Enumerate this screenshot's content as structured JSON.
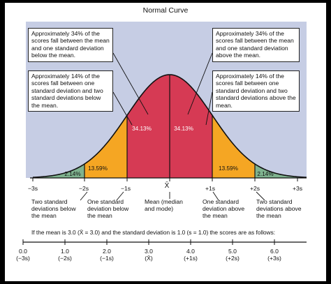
{
  "title": "Normal Curve",
  "callouts": {
    "left_34": "Approximately 34% of the scores fall between the mean and one standard deviation below the mean.",
    "right_34": "Approximately 34% of the scores fall between the mean and one standard deviation above the mean.",
    "left_14": "Approximately 14% of the scores fall between one standard deviation and two standard deviations below the mean.",
    "right_14": "Approximately 14% of the scores fall between one standard deviation and two standard deviations above the mean."
  },
  "regions": {
    "center_left": "34.13%",
    "center_right": "34.13%",
    "mid_left": "13.59%",
    "mid_right": "13.59%",
    "tail_left": "2.14%",
    "tail_right": "2.14%"
  },
  "axis_ticks": [
    "−3s",
    "−2s",
    "−1s",
    "X̄",
    "+1s",
    "+2s",
    "+3s"
  ],
  "axis_notes": {
    "minus2": "Two standard deviations below the mean",
    "minus1": "One standard deviation below the mean",
    "mean": "Mean (median and mode)",
    "plus1": "One standard deviation above the mean",
    "plus2": "Two standard deviations above the mean"
  },
  "example_text": "If the mean is 3.0 (X̄ = 3.0) and the standard deviation is 1.0 (s = 1.0) the scores are as follows:",
  "scale": [
    {
      "value": "0.0",
      "sd": "(−3s)"
    },
    {
      "value": "1.0",
      "sd": "(−2s)"
    },
    {
      "value": "2.0",
      "sd": "(−1s)"
    },
    {
      "value": "3.0",
      "sd": "(X̄)"
    },
    {
      "value": "4.0",
      "sd": "(+1s)"
    },
    {
      "value": "5.0",
      "sd": "(+2s)"
    },
    {
      "value": "6.0",
      "sd": "(+3s)"
    }
  ],
  "colors": {
    "background": "#c6cde4",
    "center": "#d63a54",
    "middle": "#f5a623",
    "tail": "#7fb38f",
    "outline": "#111111"
  }
}
